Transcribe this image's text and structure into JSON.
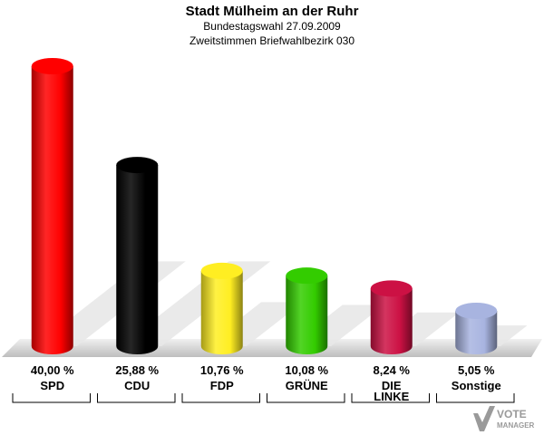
{
  "header": {
    "title": "Stadt Mülheim an der Ruhr",
    "subtitle": "Bundestagswahl 27.09.2009",
    "subtitle2": "Zweitstimmen Briefwahlbezirk 030"
  },
  "chart_data": {
    "type": "bar",
    "title": "Stadt Mülheim an der Ruhr",
    "subtitle": "Bundestagswahl 27.09.2009 · Zweitstimmen Briefwahlbezirk 030",
    "categories": [
      "SPD",
      "CDU",
      "FDP",
      "GRÜNE",
      "DIE LINKE",
      "Sonstige"
    ],
    "category_lines": [
      [
        "SPD"
      ],
      [
        "CDU"
      ],
      [
        "FDP"
      ],
      [
        "GRÜNE"
      ],
      [
        "DIE",
        "LINKE"
      ],
      [
        "Sonstige"
      ]
    ],
    "values": [
      40.0,
      25.88,
      10.76,
      10.08,
      8.24,
      5.05
    ],
    "value_labels": [
      "40,00 %",
      "25,88 %",
      "10,76 %",
      "10,08 %",
      "8,24 %",
      "5,05 %"
    ],
    "colors": [
      "#ff0000",
      "#000000",
      "#ffee22",
      "#33cc00",
      "#cc1144",
      "#a8b4e0"
    ],
    "ylim": [
      0,
      40
    ],
    "grid": false,
    "legend": "none"
  },
  "logo": {
    "line1": "VOTE",
    "line2": "MANAGER"
  }
}
